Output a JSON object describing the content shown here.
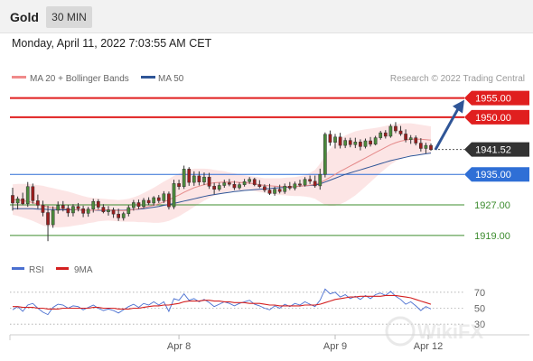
{
  "header": {
    "asset": "Gold",
    "timeframe": "30 MIN",
    "timestamp": "Monday, April 11, 2022 7:03:55 AM CET"
  },
  "legend": {
    "items": [
      {
        "label": "MA 20 + Bollinger Bands",
        "color": "#f08a8a"
      },
      {
        "label": "MA 50",
        "color": "#2f5597"
      }
    ],
    "credit": "Research © 2022 Trading Central"
  },
  "rsi_legend": {
    "items": [
      {
        "label": "RSI",
        "color": "#4a6fd0"
      },
      {
        "label": "9MA",
        "color": "#d42020"
      }
    ]
  },
  "watermark": "WikiFX",
  "chart_data": [
    {
      "type": "candlestick",
      "title": "Gold",
      "ylim": [
        1914,
        1958
      ],
      "x_ticks": [
        "Apr 8",
        "Apr 9",
        "Apr 12"
      ],
      "levels": [
        {
          "value": 1955.0,
          "label": "1955.00",
          "kind": "resistance",
          "color": "#e01f1f"
        },
        {
          "value": 1950.0,
          "label": "1950.00",
          "kind": "resistance",
          "color": "#e01f1f"
        },
        {
          "value": 1941.52,
          "label": "1941.52",
          "kind": "last-price",
          "color": "#333333"
        },
        {
          "value": 1935.0,
          "label": "1935.00",
          "kind": "pivot",
          "color": "#2f6fd6"
        },
        {
          "value": 1927.0,
          "label": "1927.00",
          "kind": "support",
          "color": "#3c8c2e"
        },
        {
          "value": 1919.0,
          "label": "1919.00",
          "kind": "support",
          "color": "#3c8c2e"
        }
      ],
      "forecast_arrow": {
        "from": 1941.5,
        "to": 1955.0,
        "color": "#2f5597"
      },
      "ohlc": [
        [
          1929.5,
          1931.5,
          1925.5,
          1927.5
        ],
        [
          1927.5,
          1929.2,
          1925.8,
          1928.6
        ],
        [
          1928.6,
          1930.2,
          1926.9,
          1927.3
        ],
        [
          1927.3,
          1933.0,
          1926.5,
          1931.8
        ],
        [
          1931.8,
          1932.6,
          1927.3,
          1928.1
        ],
        [
          1928.1,
          1929.7,
          1926.0,
          1926.9
        ],
        [
          1926.9,
          1928.1,
          1924.0,
          1925.0
        ],
        [
          1925.0,
          1926.8,
          1917.5,
          1921.8
        ],
        [
          1921.8,
          1926.6,
          1921.0,
          1925.6
        ],
        [
          1925.6,
          1927.9,
          1924.7,
          1926.9
        ],
        [
          1926.9,
          1928.0,
          1925.3,
          1926.1
        ],
        [
          1926.1,
          1927.0,
          1923.9,
          1924.9
        ],
        [
          1924.9,
          1927.2,
          1924.0,
          1926.6
        ],
        [
          1926.6,
          1927.5,
          1925.3,
          1926.0
        ],
        [
          1926.0,
          1926.8,
          1923.8,
          1924.8
        ],
        [
          1924.8,
          1926.5,
          1923.9,
          1925.9
        ],
        [
          1925.9,
          1928.6,
          1925.0,
          1927.9
        ],
        [
          1927.9,
          1928.5,
          1925.8,
          1926.4
        ],
        [
          1926.4,
          1927.2,
          1924.8,
          1925.2
        ],
        [
          1925.2,
          1926.7,
          1924.2,
          1925.7
        ],
        [
          1925.7,
          1926.3,
          1923.6,
          1924.6
        ],
        [
          1924.6,
          1926.0,
          1922.8,
          1923.6
        ],
        [
          1923.6,
          1925.2,
          1922.9,
          1924.7
        ],
        [
          1924.7,
          1926.9,
          1924.0,
          1926.3
        ],
        [
          1926.3,
          1928.3,
          1925.5,
          1927.6
        ],
        [
          1927.6,
          1928.4,
          1925.9,
          1926.6
        ],
        [
          1926.6,
          1928.8,
          1926.1,
          1928.2
        ],
        [
          1928.2,
          1929.0,
          1926.9,
          1927.5
        ],
        [
          1927.5,
          1929.3,
          1926.8,
          1928.9
        ],
        [
          1928.9,
          1929.6,
          1927.5,
          1928.1
        ],
        [
          1928.1,
          1930.6,
          1927.5,
          1929.9
        ],
        [
          1929.9,
          1930.5,
          1925.8,
          1926.5
        ],
        [
          1926.5,
          1933.6,
          1925.9,
          1932.6
        ],
        [
          1932.6,
          1933.6,
          1931.0,
          1931.8
        ],
        [
          1931.8,
          1937.3,
          1931.2,
          1936.4
        ],
        [
          1936.4,
          1936.9,
          1932.0,
          1932.9
        ],
        [
          1932.9,
          1935.8,
          1932.0,
          1934.6
        ],
        [
          1934.6,
          1935.8,
          1932.1,
          1933.0
        ],
        [
          1933.0,
          1935.5,
          1932.2,
          1934.3
        ],
        [
          1934.3,
          1935.4,
          1931.2,
          1931.9
        ],
        [
          1931.9,
          1932.8,
          1929.8,
          1931.1
        ],
        [
          1931.1,
          1932.8,
          1930.6,
          1932.1
        ],
        [
          1932.1,
          1933.6,
          1931.5,
          1932.8
        ],
        [
          1932.8,
          1933.8,
          1931.9,
          1932.4
        ],
        [
          1932.4,
          1933.3,
          1930.9,
          1931.5
        ],
        [
          1931.5,
          1932.9,
          1931.0,
          1932.3
        ],
        [
          1932.3,
          1933.8,
          1931.8,
          1933.1
        ],
        [
          1933.1,
          1934.3,
          1932.5,
          1933.7
        ],
        [
          1933.7,
          1934.1,
          1931.9,
          1932.3
        ],
        [
          1932.3,
          1933.5,
          1931.4,
          1931.8
        ],
        [
          1931.8,
          1932.4,
          1930.3,
          1930.9
        ],
        [
          1930.9,
          1932.5,
          1929.6,
          1930.0
        ],
        [
          1930.0,
          1931.8,
          1929.4,
          1931.1
        ],
        [
          1931.1,
          1932.3,
          1930.0,
          1930.5
        ],
        [
          1930.5,
          1932.6,
          1929.9,
          1931.9
        ],
        [
          1931.9,
          1933.0,
          1930.9,
          1931.4
        ],
        [
          1931.4,
          1933.1,
          1930.8,
          1932.5
        ],
        [
          1932.5,
          1933.6,
          1931.7,
          1932.2
        ],
        [
          1932.2,
          1934.3,
          1931.8,
          1933.7
        ],
        [
          1933.7,
          1934.7,
          1932.5,
          1933.2
        ],
        [
          1933.2,
          1934.7,
          1931.5,
          1932.0
        ],
        [
          1932.0,
          1936.5,
          1931.0,
          1935.0
        ],
        [
          1935.0,
          1946.0,
          1934.2,
          1945.5
        ],
        [
          1945.5,
          1946.5,
          1942.5,
          1943.4
        ],
        [
          1943.4,
          1945.6,
          1941.8,
          1944.8
        ],
        [
          1944.8,
          1945.9,
          1941.8,
          1942.6
        ],
        [
          1942.6,
          1944.6,
          1941.9,
          1943.9
        ],
        [
          1943.9,
          1944.6,
          1942.1,
          1942.8
        ],
        [
          1942.8,
          1944.6,
          1941.9,
          1943.5
        ],
        [
          1943.5,
          1944.2,
          1941.3,
          1942.3
        ],
        [
          1942.3,
          1944.4,
          1941.8,
          1943.8
        ],
        [
          1943.8,
          1944.8,
          1942.3,
          1942.9
        ],
        [
          1942.9,
          1945.1,
          1942.6,
          1944.6
        ],
        [
          1944.6,
          1946.4,
          1944.1,
          1945.9
        ],
        [
          1945.9,
          1946.6,
          1944.4,
          1945.0
        ],
        [
          1945.0,
          1948.2,
          1944.6,
          1947.6
        ],
        [
          1947.6,
          1948.7,
          1945.8,
          1946.4
        ],
        [
          1946.4,
          1947.7,
          1945.1,
          1945.6
        ],
        [
          1945.6,
          1946.8,
          1943.4,
          1944.1
        ],
        [
          1944.1,
          1945.3,
          1943.0,
          1944.6
        ],
        [
          1944.6,
          1945.2,
          1942.6,
          1943.2
        ],
        [
          1943.2,
          1944.5,
          1941.0,
          1941.8
        ],
        [
          1941.8,
          1943.3,
          1940.5,
          1942.6
        ],
        [
          1942.6,
          1943.1,
          1941.2,
          1941.5
        ]
      ],
      "ma20": [
        1928.4,
        1928.3,
        1928.1,
        1927.9,
        1927.6,
        1927.2,
        1926.8,
        1926.5,
        1926.3,
        1926.1,
        1926.0,
        1925.9,
        1925.8,
        1925.7,
        1925.6,
        1925.6,
        1925.6,
        1925.7,
        1925.7,
        1925.7,
        1925.6,
        1925.5,
        1925.5,
        1925.6,
        1925.8,
        1926.0,
        1926.3,
        1926.6,
        1926.9,
        1927.3,
        1927.8,
        1928.3,
        1929.0,
        1929.6,
        1930.3,
        1930.9,
        1931.5,
        1931.9,
        1932.3,
        1932.6,
        1932.8,
        1932.9,
        1933.0,
        1933.0,
        1933.0,
        1932.9,
        1932.8,
        1932.7,
        1932.5,
        1932.3,
        1932.1,
        1932.0,
        1931.9,
        1931.8,
        1931.8,
        1931.8,
        1931.8,
        1931.9,
        1932.0,
        1932.2,
        1932.4,
        1932.8,
        1933.5,
        1934.2,
        1935.0,
        1935.8,
        1936.5,
        1937.2,
        1937.9,
        1938.6,
        1939.3,
        1940.0,
        1940.7,
        1941.4,
        1942.1,
        1942.8,
        1943.3,
        1943.7,
        1944.0,
        1944.2,
        1944.2,
        1944.2,
        1944.1,
        1944.0
      ],
      "ma50": [
        1926.0,
        1926.0,
        1926.0,
        1926.0,
        1926.0,
        1925.9,
        1925.9,
        1925.8,
        1925.8,
        1925.7,
        1925.7,
        1925.7,
        1925.7,
        1925.7,
        1925.6,
        1925.6,
        1925.6,
        1925.6,
        1925.6,
        1925.6,
        1925.6,
        1925.6,
        1925.6,
        1925.7,
        1925.8,
        1925.9,
        1926.0,
        1926.2,
        1926.4,
        1926.6,
        1926.9,
        1927.1,
        1927.4,
        1927.7,
        1928.0,
        1928.3,
        1928.6,
        1928.9,
        1929.2,
        1929.5,
        1929.7,
        1929.9,
        1930.1,
        1930.3,
        1930.5,
        1930.6,
        1930.8,
        1930.9,
        1931.0,
        1931.1,
        1931.2,
        1931.3,
        1931.4,
        1931.5,
        1931.6,
        1931.7,
        1931.8,
        1931.9,
        1932.0,
        1932.1,
        1932.2,
        1932.5,
        1933.0,
        1933.5,
        1934.0,
        1934.5,
        1935.0,
        1935.4,
        1935.8,
        1936.2,
        1936.6,
        1937.0,
        1937.4,
        1937.8,
        1938.2,
        1938.6,
        1938.9,
        1939.2,
        1939.5,
        1939.8,
        1940.0,
        1940.2,
        1940.4,
        1940.6
      ],
      "bb_width": [
        4.0,
        4.2,
        4.4,
        4.6,
        4.8,
        5.0,
        5.2,
        5.2,
        5.1,
        5.0,
        4.8,
        4.6,
        4.3,
        4.0,
        3.7,
        3.4,
        3.2,
        3.0,
        2.9,
        2.8,
        2.8,
        2.8,
        2.9,
        3.0,
        3.2,
        3.5,
        3.8,
        4.2,
        4.6,
        5.0,
        5.3,
        5.5,
        5.6,
        5.6,
        5.5,
        5.3,
        5.0,
        4.6,
        4.2,
        3.8,
        3.4,
        3.1,
        2.8,
        2.5,
        2.3,
        2.1,
        2.0,
        1.9,
        1.9,
        1.9,
        1.9,
        2.0,
        2.1,
        2.2,
        2.3,
        2.4,
        2.5,
        2.6,
        2.8,
        3.2,
        3.8,
        5.0,
        6.5,
        7.5,
        8.2,
        8.6,
        8.7,
        8.6,
        8.4,
        8.0,
        7.5,
        7.0,
        6.5,
        6.0,
        5.6,
        5.2,
        4.9,
        4.6,
        4.4,
        4.2,
        4.0,
        3.8,
        3.7,
        3.6
      ]
    },
    {
      "type": "line",
      "title": "RSI",
      "ylim": [
        20,
        80
      ],
      "y_ticks": [
        "70",
        "50",
        "30"
      ],
      "series": [
        {
          "name": "RSI",
          "color": "#4a6fd0",
          "values": [
            48,
            52,
            46,
            54,
            56,
            50,
            45,
            42,
            51,
            55,
            54,
            50,
            53,
            52,
            48,
            51,
            54,
            50,
            47,
            49,
            47,
            44,
            48,
            52,
            55,
            51,
            56,
            54,
            58,
            54,
            58,
            46,
            62,
            60,
            68,
            60,
            62,
            58,
            61,
            57,
            52,
            55,
            58,
            56,
            53,
            56,
            58,
            60,
            55,
            53,
            50,
            48,
            53,
            50,
            55,
            52,
            56,
            54,
            58,
            55,
            52,
            60,
            74,
            68,
            70,
            64,
            67,
            62,
            65,
            61,
            66,
            62,
            67,
            69,
            66,
            71,
            65,
            61,
            55,
            58,
            53,
            47,
            52,
            49
          ]
        },
        {
          "name": "9MA",
          "color": "#d42020",
          "values": [
            52,
            52,
            51,
            51,
            51,
            50,
            50,
            49,
            49,
            49,
            50,
            50,
            50,
            50,
            50,
            50,
            51,
            51,
            50,
            50,
            50,
            49,
            49,
            49,
            50,
            50,
            51,
            52,
            53,
            53,
            54,
            54,
            55,
            56,
            58,
            59,
            59,
            59,
            60,
            60,
            59,
            59,
            58,
            58,
            57,
            57,
            57,
            56,
            56,
            56,
            55,
            54,
            54,
            53,
            53,
            53,
            53,
            53,
            54,
            54,
            54,
            55,
            57,
            59,
            61,
            62,
            63,
            64,
            64,
            65,
            65,
            65,
            65,
            65,
            66,
            66,
            66,
            65,
            64,
            63,
            61,
            59,
            57,
            55
          ]
        }
      ],
      "x_ticks": [
        "Apr 8",
        "Apr 9",
        "Apr 12"
      ]
    }
  ]
}
